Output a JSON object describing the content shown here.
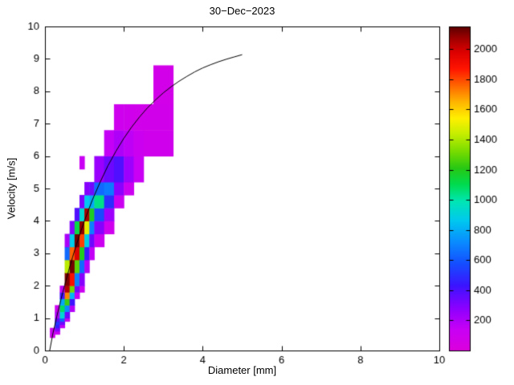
{
  "chart_data": {
    "type": "heatmap",
    "title": "30−Dec−2023",
    "xlabel": "Diameter [mm]",
    "ylabel": "Velocity [m/s]",
    "xlim": [
      0,
      10
    ],
    "ylim": [
      0,
      10
    ],
    "xticks": [
      0,
      2,
      4,
      6,
      8,
      10
    ],
    "yticks": [
      0,
      1,
      2,
      3,
      4,
      5,
      6,
      7,
      8,
      9,
      10
    ],
    "grid": false,
    "background": "#ffffff",
    "axis_color": "#000000",
    "colorbar": {
      "min": 0,
      "max": 2150,
      "ticks": [
        200,
        400,
        600,
        800,
        1000,
        1200,
        1400,
        1600,
        1800,
        2000
      ],
      "position": "right"
    },
    "colormap": [
      [
        0,
        "#DC00DC"
      ],
      [
        140,
        "#C800F5"
      ],
      [
        280,
        "#8C00FF"
      ],
      [
        430,
        "#3C14FF"
      ],
      [
        580,
        "#1450FF"
      ],
      [
        720,
        "#0A8CFF"
      ],
      [
        860,
        "#00C8F0"
      ],
      [
        990,
        "#00E6B4"
      ],
      [
        1100,
        "#00DC50"
      ],
      [
        1210,
        "#28C814"
      ],
      [
        1320,
        "#78DC00"
      ],
      [
        1440,
        "#C8EE00"
      ],
      [
        1540,
        "#FFF000"
      ],
      [
        1650,
        "#FFB400"
      ],
      [
        1760,
        "#FF6400"
      ],
      [
        1870,
        "#FF1400"
      ],
      [
        1980,
        "#DC0000"
      ],
      [
        2070,
        "#A00000"
      ],
      [
        2150,
        "#5A0000"
      ]
    ],
    "cells": [
      [
        0.125,
        0.25,
        0.4,
        0.5,
        80
      ],
      [
        0.125,
        0.25,
        0.5,
        0.6,
        140
      ],
      [
        0.125,
        0.25,
        0.6,
        0.7,
        100
      ],
      [
        0.25,
        0.375,
        0.5,
        0.6,
        130
      ],
      [
        0.25,
        0.375,
        0.6,
        0.7,
        300
      ],
      [
        0.25,
        0.375,
        0.7,
        0.8,
        460
      ],
      [
        0.25,
        0.375,
        0.8,
        0.9,
        520
      ],
      [
        0.25,
        0.375,
        0.9,
        1.0,
        360
      ],
      [
        0.25,
        0.375,
        1.0,
        1.2,
        200
      ],
      [
        0.25,
        0.375,
        1.2,
        1.4,
        110
      ],
      [
        0.375,
        0.5,
        0.7,
        0.8,
        160
      ],
      [
        0.375,
        0.5,
        0.8,
        0.9,
        340
      ],
      [
        0.375,
        0.5,
        0.9,
        1.0,
        620
      ],
      [
        0.375,
        0.5,
        1.0,
        1.2,
        920
      ],
      [
        0.375,
        0.5,
        1.2,
        1.4,
        1080
      ],
      [
        0.375,
        0.5,
        1.4,
        1.6,
        780
      ],
      [
        0.375,
        0.5,
        1.6,
        1.8,
        420
      ],
      [
        0.375,
        0.5,
        1.8,
        2.0,
        160
      ],
      [
        0.5,
        0.625,
        0.9,
        1.0,
        120
      ],
      [
        0.5,
        0.625,
        1.0,
        1.2,
        340
      ],
      [
        0.5,
        0.625,
        1.2,
        1.4,
        720
      ],
      [
        0.5,
        0.625,
        1.4,
        1.6,
        1240
      ],
      [
        0.5,
        0.625,
        1.6,
        1.8,
        1720
      ],
      [
        0.5,
        0.625,
        1.8,
        2.0,
        2040
      ],
      [
        0.5,
        0.625,
        2.0,
        2.4,
        2110
      ],
      [
        0.5,
        0.625,
        2.4,
        2.8,
        1420
      ],
      [
        0.5,
        0.625,
        2.8,
        3.2,
        640
      ],
      [
        0.5,
        0.625,
        3.2,
        3.6,
        210
      ],
      [
        0.625,
        0.75,
        1.2,
        1.4,
        190
      ],
      [
        0.625,
        0.75,
        1.4,
        1.6,
        430
      ],
      [
        0.625,
        0.75,
        1.6,
        1.8,
        820
      ],
      [
        0.625,
        0.75,
        1.8,
        2.0,
        1310
      ],
      [
        0.625,
        0.75,
        2.0,
        2.4,
        1890
      ],
      [
        0.625,
        0.75,
        2.4,
        2.8,
        2120
      ],
      [
        0.625,
        0.75,
        2.8,
        3.2,
        1760
      ],
      [
        0.625,
        0.75,
        3.2,
        3.6,
        880
      ],
      [
        0.625,
        0.75,
        3.6,
        4.0,
        300
      ],
      [
        0.75,
        0.875,
        1.6,
        1.8,
        150
      ],
      [
        0.75,
        0.875,
        1.8,
        2.0,
        330
      ],
      [
        0.75,
        0.875,
        2.0,
        2.4,
        690
      ],
      [
        0.75,
        0.875,
        2.4,
        2.8,
        1280
      ],
      [
        0.75,
        0.875,
        2.8,
        3.2,
        1980
      ],
      [
        0.75,
        0.875,
        3.2,
        3.6,
        2130
      ],
      [
        0.75,
        0.875,
        3.6,
        4.0,
        1120
      ],
      [
        0.75,
        0.875,
        4.0,
        4.4,
        390
      ],
      [
        0.875,
        1.0,
        1.8,
        2.0,
        120
      ],
      [
        0.875,
        1.0,
        2.0,
        2.4,
        290
      ],
      [
        0.875,
        1.0,
        2.4,
        2.8,
        640
      ],
      [
        0.875,
        1.0,
        2.8,
        3.2,
        1190
      ],
      [
        0.875,
        1.0,
        3.2,
        3.6,
        1810
      ],
      [
        0.875,
        1.0,
        3.6,
        4.0,
        2090
      ],
      [
        0.875,
        1.0,
        4.0,
        4.4,
        930
      ],
      [
        0.875,
        1.0,
        4.4,
        4.8,
        310
      ],
      [
        0.875,
        1.0,
        5.6,
        6.0,
        130
      ],
      [
        1.0,
        1.125,
        2.4,
        2.8,
        190
      ],
      [
        1.0,
        1.125,
        2.8,
        3.2,
        440
      ],
      [
        1.0,
        1.125,
        3.2,
        3.6,
        890
      ],
      [
        1.0,
        1.125,
        3.6,
        4.0,
        1490
      ],
      [
        1.0,
        1.125,
        4.0,
        4.4,
        2060
      ],
      [
        1.0,
        1.125,
        4.4,
        4.8,
        860
      ],
      [
        1.0,
        1.125,
        4.8,
        5.2,
        290
      ],
      [
        1.125,
        1.25,
        2.8,
        3.2,
        150
      ],
      [
        1.125,
        1.25,
        3.2,
        3.6,
        340
      ],
      [
        1.125,
        1.25,
        3.6,
        4.0,
        690
      ],
      [
        1.125,
        1.25,
        4.0,
        4.4,
        1180
      ],
      [
        1.125,
        1.25,
        4.4,
        4.8,
        780
      ],
      [
        1.125,
        1.25,
        4.8,
        5.2,
        330
      ],
      [
        1.25,
        1.5,
        3.2,
        3.6,
        120
      ],
      [
        1.25,
        1.5,
        3.6,
        4.0,
        290
      ],
      [
        1.25,
        1.5,
        4.0,
        4.4,
        560
      ],
      [
        1.25,
        1.5,
        4.4,
        4.8,
        1040
      ],
      [
        1.25,
        1.5,
        4.8,
        5.2,
        640
      ],
      [
        1.25,
        1.5,
        5.2,
        6.0,
        250
      ],
      [
        1.5,
        1.75,
        3.6,
        4.0,
        100
      ],
      [
        1.5,
        1.75,
        4.0,
        4.4,
        240
      ],
      [
        1.5,
        1.75,
        4.4,
        4.8,
        490
      ],
      [
        1.5,
        1.75,
        4.8,
        5.2,
        680
      ],
      [
        1.5,
        1.75,
        5.2,
        6.0,
        340
      ],
      [
        1.5,
        1.75,
        6.0,
        6.8,
        150
      ],
      [
        1.75,
        2.0,
        4.4,
        4.8,
        120
      ],
      [
        1.75,
        2.0,
        4.8,
        5.2,
        280
      ],
      [
        1.75,
        2.0,
        5.2,
        6.0,
        390
      ],
      [
        1.75,
        2.0,
        6.0,
        6.8,
        200
      ],
      [
        1.75,
        2.0,
        6.8,
        7.6,
        100
      ],
      [
        2.0,
        2.25,
        4.8,
        5.2,
        110
      ],
      [
        2.0,
        2.25,
        5.2,
        6.0,
        240
      ],
      [
        2.0,
        2.25,
        6.0,
        6.8,
        160
      ],
      [
        2.0,
        2.25,
        6.8,
        7.6,
        90
      ],
      [
        2.25,
        2.5,
        5.2,
        6.0,
        130
      ],
      [
        2.25,
        2.5,
        6.0,
        6.8,
        110
      ],
      [
        2.25,
        2.5,
        6.8,
        7.6,
        85
      ],
      [
        2.5,
        3.25,
        6.0,
        6.8,
        90
      ],
      [
        2.5,
        3.25,
        6.8,
        7.6,
        80
      ],
      [
        2.75,
        3.25,
        7.6,
        8.8,
        70
      ]
    ],
    "curve": {
      "name": "terminal-velocity-curve",
      "color": "#000000",
      "points": [
        [
          0.12,
          0.0
        ],
        [
          0.2,
          0.52
        ],
        [
          0.3,
          1.05
        ],
        [
          0.4,
          1.55
        ],
        [
          0.5,
          2.02
        ],
        [
          0.6,
          2.46
        ],
        [
          0.7,
          2.88
        ],
        [
          0.8,
          3.27
        ],
        [
          0.9,
          3.65
        ],
        [
          1.0,
          4.0
        ],
        [
          1.2,
          4.64
        ],
        [
          1.4,
          5.2
        ],
        [
          1.6,
          5.71
        ],
        [
          1.8,
          6.15
        ],
        [
          2.0,
          6.55
        ],
        [
          2.2,
          6.9
        ],
        [
          2.4,
          7.21
        ],
        [
          2.6,
          7.49
        ],
        [
          2.8,
          7.73
        ],
        [
          3.0,
          7.95
        ],
        [
          3.2,
          8.14
        ],
        [
          3.4,
          8.31
        ],
        [
          3.6,
          8.46
        ],
        [
          3.8,
          8.6
        ],
        [
          4.0,
          8.72
        ],
        [
          4.2,
          8.82
        ],
        [
          4.4,
          8.91
        ],
        [
          4.6,
          8.99
        ],
        [
          4.8,
          9.06
        ],
        [
          5.0,
          9.13
        ]
      ]
    }
  }
}
